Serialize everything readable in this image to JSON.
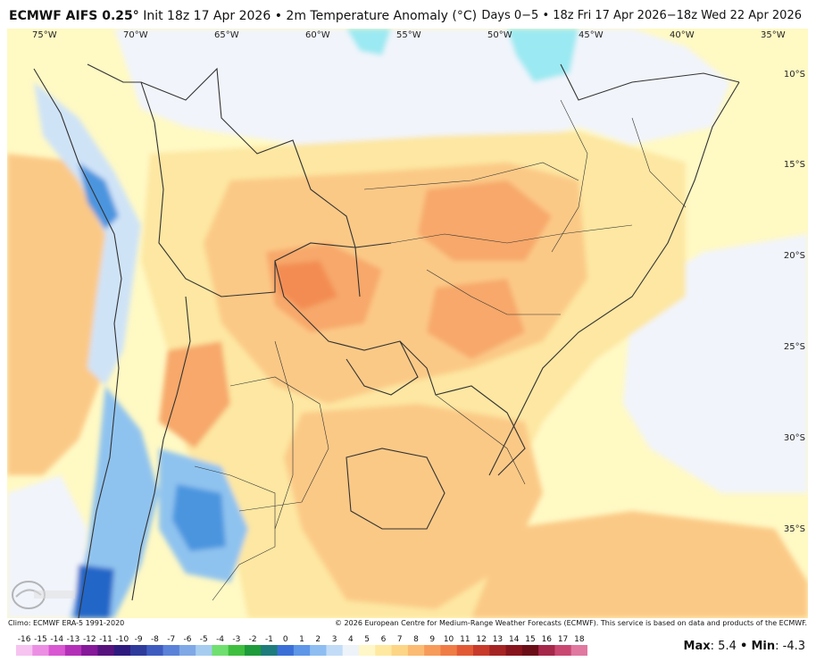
{
  "header": {
    "model": "ECMWF AIFS 0.25°",
    "init": "Init 18z 17 Apr 2026",
    "sep": "•",
    "variable": "2m Temperature Anomaly (°C)",
    "range": "Days 0−5 • 18z Fri 17 Apr 2026−18z Wed 22 Apr 2026"
  },
  "map": {
    "lon_labels": [
      "75°W",
      "70°W",
      "65°W",
      "60°W",
      "55°W",
      "50°W",
      "45°W",
      "40°W",
      "35°W"
    ],
    "lat_labels": [
      "10°S",
      "15°S",
      "20°S",
      "25°S",
      "30°S",
      "35°S"
    ],
    "colors": {
      "sea_light": "#fff9c4",
      "pale": "#f1f4fb",
      "warm1": "#fde7a2",
      "warm2": "#fbc986",
      "warm3": "#f7a86a",
      "warm4": "#f38c52",
      "cold1": "#cfe3f7",
      "cold2": "#8fc3ef",
      "cold3": "#4b95df",
      "cold4": "#2266c8",
      "cyan": "#9be9f2",
      "border": "#333333"
    }
  },
  "footer": {
    "climo": "Climo: ECMWF ERA-5 1991-2020",
    "copyright": "© 2026 European Centre for Medium-Range Weather Forecasts (ECMWF). This service is based on data and products of the ECMWF."
  },
  "colorbar": {
    "labels": [
      "-16",
      "-15",
      "-14",
      "-13",
      "-12",
      "-11",
      "-10",
      "-9",
      "-8",
      "-7",
      "-6",
      "-5",
      "-4",
      "-3",
      "-2",
      "-1",
      "0",
      "1",
      "2",
      "3",
      "4",
      "5",
      "6",
      "7",
      "8",
      "9",
      "10",
      "11",
      "12",
      "13",
      "14",
      "15",
      "16",
      "17",
      "18"
    ],
    "colors": [
      "#f7c3f1",
      "#ec8fe4",
      "#d957d3",
      "#b42fb8",
      "#86189a",
      "#57127e",
      "#2e1a7e",
      "#2e3b9b",
      "#3e5cc0",
      "#5b82d9",
      "#7fa8e6",
      "#a6cdf0",
      "#6fe06f",
      "#3fbf3f",
      "#1e9b3a",
      "#1e7c7c",
      "#3b6fd8",
      "#5e96e8",
      "#8ebdf2",
      "#c2dcf7",
      "#eef3fa",
      "#fff7c7",
      "#ffe9a1",
      "#fdd586",
      "#fbbb72",
      "#f79b5a",
      "#f07c45",
      "#e25a35",
      "#c83a2a",
      "#a52423",
      "#87141c",
      "#6b0d17",
      "#a5274a",
      "#c94872",
      "#e078a0"
    ]
  },
  "stats": {
    "max_label": "Max",
    "max_value": "5.4",
    "sep": "•",
    "min_label": "Min",
    "min_value": "-4.3"
  }
}
